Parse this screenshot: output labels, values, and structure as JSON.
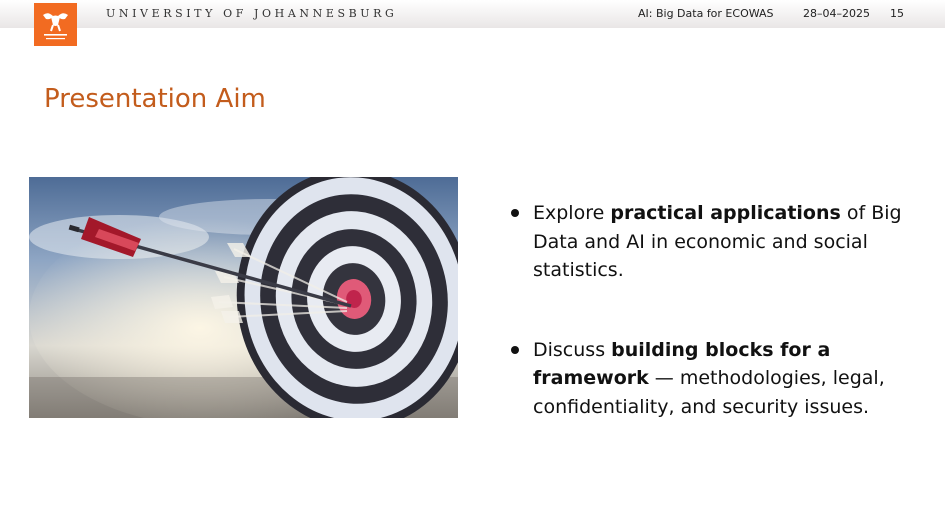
{
  "header": {
    "university": "UNIVERSITY OF JOHANNESBURG",
    "short_title": "AI: Big Data for ECOWAS",
    "date": "28–04–2025",
    "page_number": "15",
    "logo_icon": "uj-logo-icon"
  },
  "slide": {
    "title": "Presentation Aim",
    "image_icon": "target-with-arrows-image",
    "bullets": [
      {
        "pre": "Explore ",
        "bold": "practical applications",
        "post": " of Big Data and AI in economic and social statistics."
      },
      {
        "pre": "Discuss ",
        "bold": "building blocks for a framework",
        "post": " — methodologies, legal, confidentiality, and security issues."
      }
    ]
  },
  "colors": {
    "accent": "#c35c1c",
    "logo_bg": "#f26b21"
  }
}
